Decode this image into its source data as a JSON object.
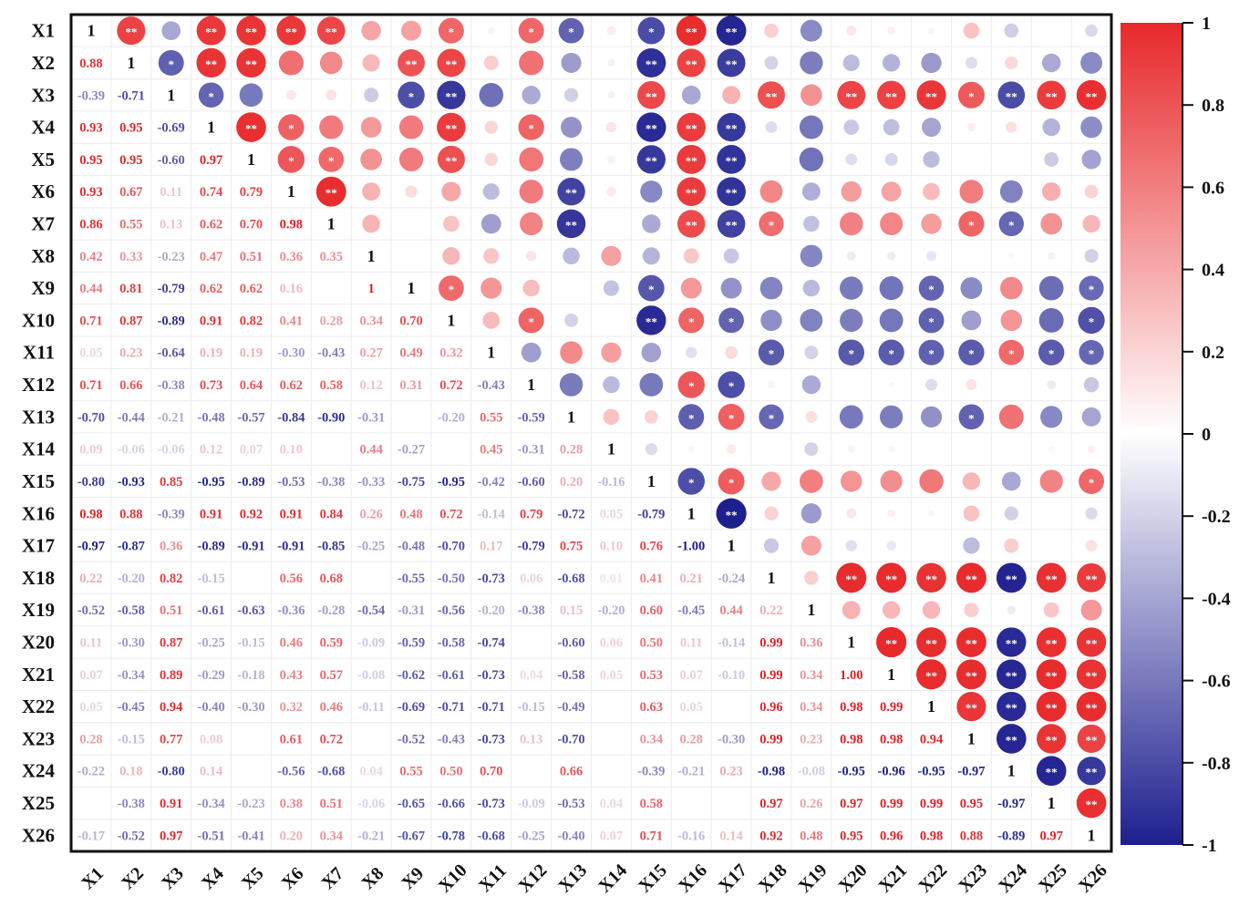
{
  "chart_data": {
    "type": "heatmap",
    "variables": [
      "X1",
      "X2",
      "X3",
      "X4",
      "X5",
      "X6",
      "X7",
      "X8",
      "X9",
      "X10",
      "X11",
      "X12",
      "X13",
      "X14",
      "X15",
      "X16",
      "X17",
      "X18",
      "X19",
      "X20",
      "X21",
      "X22",
      "X23",
      "X24",
      "X25",
      "X26"
    ],
    "lower_triangle_labels": [
      [],
      [
        "0.88"
      ],
      [
        "-0.39",
        "-0.71"
      ],
      [
        "0.93",
        "0.95",
        "-0.69"
      ],
      [
        "0.95",
        "0.95",
        "-0.60",
        "0.97"
      ],
      [
        "0.93",
        "0.67",
        "0.11",
        "0.74",
        "0.79"
      ],
      [
        "0.86",
        "0.55",
        "0.13",
        "0.62",
        "0.70",
        "0.98"
      ],
      [
        "0.42",
        "0.33",
        "-0.23",
        "0.47",
        "0.51",
        "0.36",
        "0.35"
      ],
      [
        "0.44",
        "0.81",
        "-0.79",
        "0.62",
        "0.62",
        "0.16",
        "",
        "1"
      ],
      [
        "0.71",
        "0.87",
        "-0.89",
        "0.91",
        "0.82",
        "0.41",
        "0.28",
        "0.34",
        "0.70"
      ],
      [
        "0.05",
        "0.23",
        "-0.64",
        "0.19",
        "0.19",
        "-0.30",
        "-0.43",
        "0.27",
        "0.49",
        "0.32"
      ],
      [
        "0.71",
        "0.66",
        "-0.38",
        "0.73",
        "0.64",
        "0.62",
        "0.58",
        "0.12",
        "0.31",
        "0.72",
        "-0.43"
      ],
      [
        "-0.70",
        "-0.44",
        "-0.21",
        "-0.48",
        "-0.57",
        "-0.84",
        "-0.90",
        "-0.31",
        "",
        "-0.20",
        "0.55",
        "-0.59"
      ],
      [
        "0.09",
        "-0.06",
        "-0.06",
        "0.12",
        "0.07",
        "0.10",
        "",
        "0.44",
        "-0.27",
        "",
        "0.45",
        "-0.31",
        "0.28"
      ],
      [
        "-0.80",
        "-0.93",
        "0.85",
        "-0.95",
        "-0.89",
        "-0.53",
        "-0.38",
        "-0.33",
        "-0.75",
        "-0.95",
        "-0.42",
        "-0.60",
        "0.20",
        "-0.16"
      ],
      [
        "0.98",
        "0.88",
        "-0.39",
        "0.91",
        "0.92",
        "0.91",
        "0.84",
        "0.26",
        "0.48",
        "0.72",
        "-0.14",
        "0.79",
        "-0.72",
        "0.05",
        "-0.79"
      ],
      [
        "-0.97",
        "-0.87",
        "0.36",
        "-0.89",
        "-0.91",
        "-0.91",
        "-0.85",
        "-0.25",
        "-0.48",
        "-0.70",
        "0.17",
        "-0.79",
        "0.75",
        "0.10",
        "0.76",
        "-1.00"
      ],
      [
        "0.22",
        "-0.20",
        "0.82",
        "-0.15",
        "",
        "0.56",
        "0.68",
        "",
        "-0.55",
        "-0.50",
        "-0.73",
        "0.06",
        "-0.68",
        "0.01",
        "0.41",
        "0.21",
        "-0.24"
      ],
      [
        "-0.52",
        "-0.58",
        "0.51",
        "-0.61",
        "-0.63",
        "-0.36",
        "-0.28",
        "-0.54",
        "-0.31",
        "-0.56",
        "-0.20",
        "-0.38",
        "0.15",
        "-0.20",
        "0.60",
        "-0.45",
        "0.44",
        "0.22"
      ],
      [
        "0.11",
        "-0.30",
        "0.87",
        "-0.25",
        "-0.15",
        "0.46",
        "0.59",
        "-0.09",
        "-0.59",
        "-0.58",
        "-0.74",
        "",
        "-0.60",
        "0.06",
        "0.50",
        "0.11",
        "-0.14",
        "0.99",
        "0.36"
      ],
      [
        "0.07",
        "-0.34",
        "0.89",
        "-0.29",
        "-0.18",
        "0.43",
        "0.57",
        "-0.08",
        "-0.62",
        "-0.61",
        "-0.73",
        "0.04",
        "-0.58",
        "0.05",
        "0.53",
        "0.07",
        "-0.10",
        "0.99",
        "0.34",
        "1.00"
      ],
      [
        "0.05",
        "-0.45",
        "0.94",
        "-0.40",
        "-0.30",
        "0.32",
        "0.46",
        "-0.11",
        "-0.69",
        "-0.71",
        "-0.71",
        "-0.15",
        "-0.49",
        "",
        "0.63",
        "0.05",
        "",
        "0.96",
        "0.34",
        "0.98",
        "0.99"
      ],
      [
        "0.28",
        "-0.15",
        "0.77",
        "0.08",
        "",
        "0.61",
        "0.72",
        "",
        "-0.52",
        "-0.43",
        "-0.73",
        "0.13",
        "-0.70",
        "",
        "0.34",
        "0.28",
        "-0.30",
        "0.99",
        "0.23",
        "0.98",
        "0.98",
        "0.94"
      ],
      [
        "-0.22",
        "0.18",
        "-0.80",
        "0.14",
        "",
        "-0.56",
        "-0.68",
        "0.04",
        "0.55",
        "0.50",
        "0.70",
        "",
        "0.66",
        "",
        "-0.39",
        "-0.21",
        "0.23",
        "-0.98",
        "-0.08",
        "-0.95",
        "-0.96",
        "-0.95",
        "-0.97"
      ],
      [
        "",
        "-0.38",
        "0.91",
        "-0.34",
        "-0.23",
        "0.38",
        "0.51",
        "-0.06",
        "-0.65",
        "-0.66",
        "-0.73",
        "-0.09",
        "-0.53",
        "0.04",
        "0.58",
        "",
        "",
        "0.97",
        "0.26",
        "0.97",
        "0.99",
        "0.99",
        "0.95",
        "-0.97"
      ],
      [
        "-0.17",
        "-0.52",
        "0.97",
        "-0.51",
        "-0.41",
        "0.20",
        "0.34",
        "-0.21",
        "-0.67",
        "-0.78",
        "-0.68",
        "-0.25",
        "-0.40",
        "0.07",
        "0.71",
        "-0.16",
        "0.14",
        "0.92",
        "0.48",
        "0.95",
        "0.96",
        "0.98",
        "0.88",
        "-0.89",
        "0.97"
      ]
    ],
    "significance_marks": {
      "0-1": "**",
      "0-3": "**",
      "0-4": "**",
      "0-5": "**",
      "0-6": "**",
      "0-9": "*",
      "0-11": "*",
      "0-12": "*",
      "0-14": "*",
      "0-15": "**",
      "0-16": "**",
      "1-2": "*",
      "1-3": "**",
      "1-4": "**",
      "1-8": "**",
      "1-9": "**",
      "1-14": "**",
      "1-15": "**",
      "1-16": "**",
      "2-3": "*",
      "2-8": "*",
      "2-9": "**",
      "2-14": "**",
      "2-17": "**",
      "2-19": "**",
      "2-20": "**",
      "2-21": "**",
      "2-22": "*",
      "2-23": "**",
      "2-24": "**",
      "2-25": "**",
      "3-4": "**",
      "3-5": "*",
      "3-9": "**",
      "3-11": "*",
      "3-14": "**",
      "3-15": "**",
      "3-16": "**",
      "4-5": "*",
      "4-6": "*",
      "4-9": "**",
      "4-14": "**",
      "4-15": "**",
      "4-16": "**",
      "5-6": "**",
      "5-12": "**",
      "5-15": "**",
      "5-16": "**",
      "6-12": "**",
      "6-15": "**",
      "6-16": "**",
      "6-17": "*",
      "6-22": "*",
      "6-23": "*",
      "8-9": "*",
      "8-14": "*",
      "8-21": "*",
      "8-25": "*",
      "9-11": "*",
      "9-14": "**",
      "9-15": "*",
      "9-16": "*",
      "9-21": "*",
      "9-25": "*",
      "10-17": "*",
      "10-19": "*",
      "10-20": "*",
      "10-21": "*",
      "10-22": "*",
      "10-23": "*",
      "10-24": "*",
      "10-25": "*",
      "11-15": "*",
      "11-16": "*",
      "12-15": "*",
      "12-16": "*",
      "12-17": "*",
      "12-22": "*",
      "14-15": "*",
      "14-16": "*",
      "14-25": "*",
      "15-16": "**",
      "17-19": "**",
      "17-20": "**",
      "17-21": "**",
      "17-22": "**",
      "17-23": "**",
      "17-24": "**",
      "17-25": "**",
      "19-20": "**",
      "19-21": "**",
      "19-22": "**",
      "19-23": "**",
      "19-24": "**",
      "19-25": "**",
      "20-21": "**",
      "20-22": "**",
      "20-23": "**",
      "20-24": "**",
      "20-25": "**",
      "21-22": "**",
      "21-23": "**",
      "21-24": "**",
      "21-25": "**",
      "22-23": "**",
      "22-24": "**",
      "22-25": "**",
      "23-24": "**",
      "23-25": "**",
      "24-25": "**"
    },
    "diagonal_label": "1",
    "colorbar": {
      "ticks": [
        "1",
        "0.8",
        "0.6",
        "0.4",
        "0.2",
        "0",
        "-0.2",
        "-0.4",
        "-0.6",
        "-0.8",
        "-1"
      ],
      "range": [
        -1,
        1
      ],
      "colors": {
        "high": "#e8292b",
        "mid": "#ffffff",
        "low": "#1e1f8f"
      }
    },
    "title": "",
    "xlabel": "",
    "ylabel": ""
  }
}
